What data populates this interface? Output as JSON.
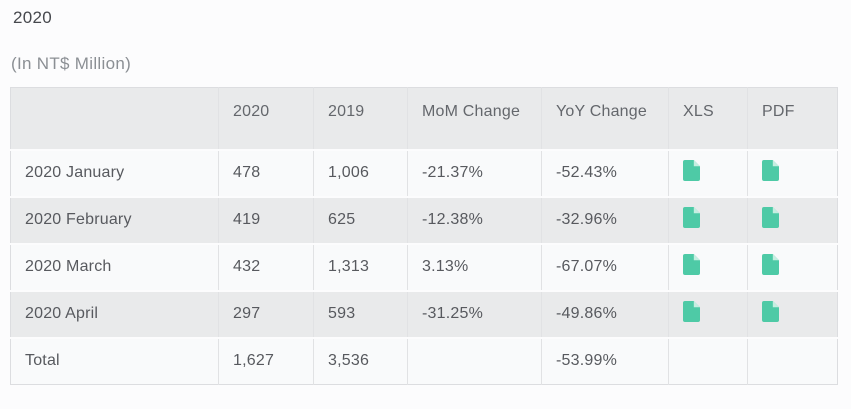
{
  "page": {
    "title": "2020",
    "subtitle": "(In NT$ Million)"
  },
  "colors": {
    "accent_teal": "#4ecaa6",
    "accent_teal_light": "#c6eee1",
    "header_bg": "#e9eaeb",
    "row_light_bg": "#f9fafb",
    "row_dark_bg": "#e9eaeb"
  },
  "table": {
    "columns": [
      "",
      "2020",
      "2019",
      "MoM Change",
      "YoY Change",
      "XLS",
      "PDF"
    ],
    "icons": {
      "xls": "file-icon",
      "pdf": "file-icon"
    },
    "rows": [
      {
        "label": "2020 January",
        "y2020": "478",
        "y2019": "1,006",
        "mom": "-21.37%",
        "yoy": "-52.43%",
        "xls": true,
        "pdf": true
      },
      {
        "label": "2020 February",
        "y2020": "419",
        "y2019": "625",
        "mom": "-12.38%",
        "yoy": "-32.96%",
        "xls": true,
        "pdf": true
      },
      {
        "label": "2020 March",
        "y2020": "432",
        "y2019": "1,313",
        "mom": "3.13%",
        "yoy": "-67.07%",
        "xls": true,
        "pdf": true
      },
      {
        "label": "2020 April",
        "y2020": "297",
        "y2019": "593",
        "mom": "-31.25%",
        "yoy": "-49.86%",
        "xls": true,
        "pdf": true
      },
      {
        "label": "Total",
        "y2020": "1,627",
        "y2019": "3,536",
        "mom": "",
        "yoy": "-53.99%",
        "xls": false,
        "pdf": false
      }
    ]
  }
}
